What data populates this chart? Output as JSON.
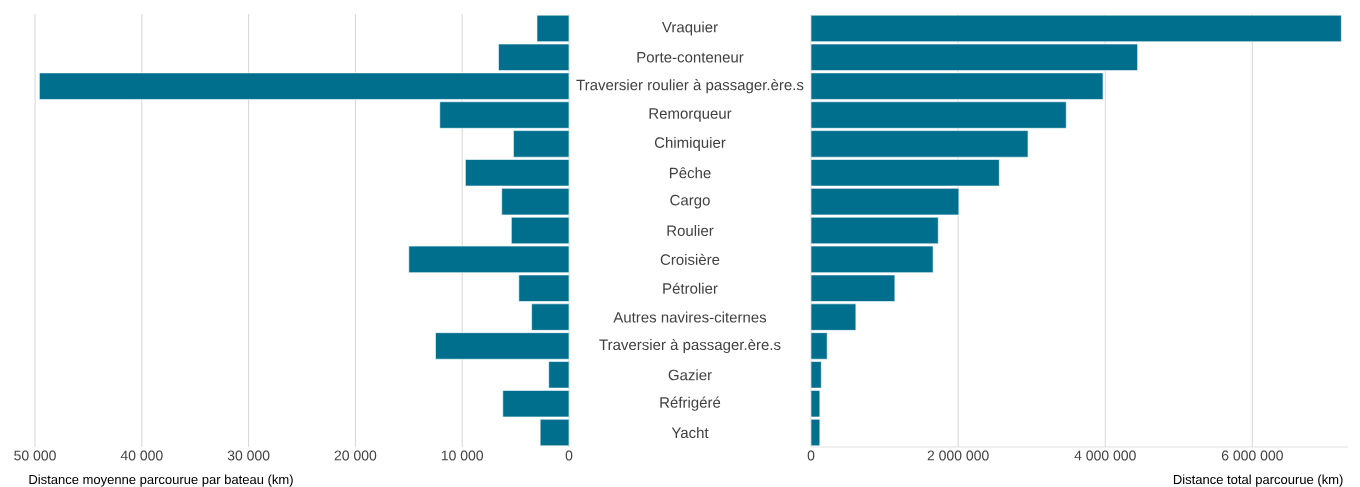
{
  "chart_data": [
    {
      "type": "bar",
      "orientation": "horizontal",
      "xlabel": "Distance moyenne parcourue par bateau (km)",
      "categories": [
        "Vraquier",
        "Porte-conteneur",
        "Traversier roulier à passager.ère.s",
        "Remorqueur",
        "Chimiquier",
        "Pêche",
        "Cargo",
        "Roulier",
        "Croisière",
        "Pétrolier",
        "Autres navires-citernes",
        "Traversier à passager.ère.s",
        "Gazier",
        "Réfrigéré",
        "Yacht"
      ],
      "values": [
        3000,
        6600,
        49600,
        12100,
        5200,
        9700,
        6300,
        5400,
        15000,
        4700,
        3500,
        12500,
        1900,
        6200,
        2700
      ],
      "color": "#006f8e",
      "xticks": [
        {
          "value": 50000,
          "label": "50 000"
        },
        {
          "value": 40000,
          "label": "40 000"
        },
        {
          "value": 30000,
          "label": "30 000"
        },
        {
          "value": 20000,
          "label": "20 000"
        },
        {
          "value": 10000,
          "label": "10 000"
        },
        0
      ],
      "grid": "x",
      "xlim": [
        50000,
        0
      ]
    },
    {
      "type": "bar",
      "orientation": "horizontal",
      "xlabel": "Distance total parcourue (km)",
      "categories": [
        null,
        null,
        null,
        null,
        null,
        null,
        null,
        null,
        null,
        null,
        null,
        null,
        null,
        null,
        null
      ],
      "values": [
        7210000,
        4440000,
        3970000,
        3470000,
        2950000,
        2560000,
        2010000,
        1730000,
        1660000,
        1140000,
        610000,
        220000,
        140000,
        120000,
        120000
      ],
      "color": "#006f8e",
      "xlim": [
        0,
        7300000
      ],
      "xticks": [
        0,
        {
          "value": 2000000,
          "label": "2 000 000"
        },
        {
          "value": 4000000,
          "label": "4 000 000"
        },
        {
          "value": 6000000,
          "label": "6 000 000"
        }
      ],
      "grid": "x"
    }
  ]
}
